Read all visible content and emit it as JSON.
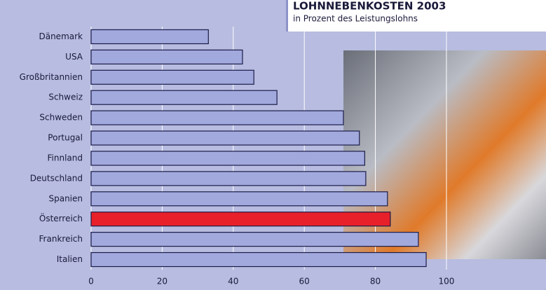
{
  "chart_data": {
    "type": "barh",
    "title": "LOHNNEBENKOSTEN 2003",
    "subtitle": "in Prozent des Leistungslohns",
    "categories": [
      "Dänemark",
      "USA",
      "Großbritannien",
      "Schweiz",
      "Schweden",
      "Portugal",
      "Finnland",
      "Deutschland",
      "Spanien",
      "Österreich",
      "Frankreich",
      "Italien"
    ],
    "values": [
      33,
      42.6,
      45.8,
      52.3,
      71,
      75.5,
      77,
      77.3,
      83.4,
      84.2,
      92.1,
      94.3
    ],
    "colors": [
      "#a1a9dd",
      "#a1a9dd",
      "#a1a9dd",
      "#a1a9dd",
      "#a1a9dd",
      "#a1a9dd",
      "#a1a9dd",
      "#a1a9dd",
      "#a1a9dd",
      "#e8202a",
      "#a1a9dd",
      "#a1a9dd"
    ],
    "xlim": [
      0,
      115
    ],
    "xticks": [
      0,
      20,
      40,
      60,
      80,
      100
    ],
    "grid": true
  }
}
